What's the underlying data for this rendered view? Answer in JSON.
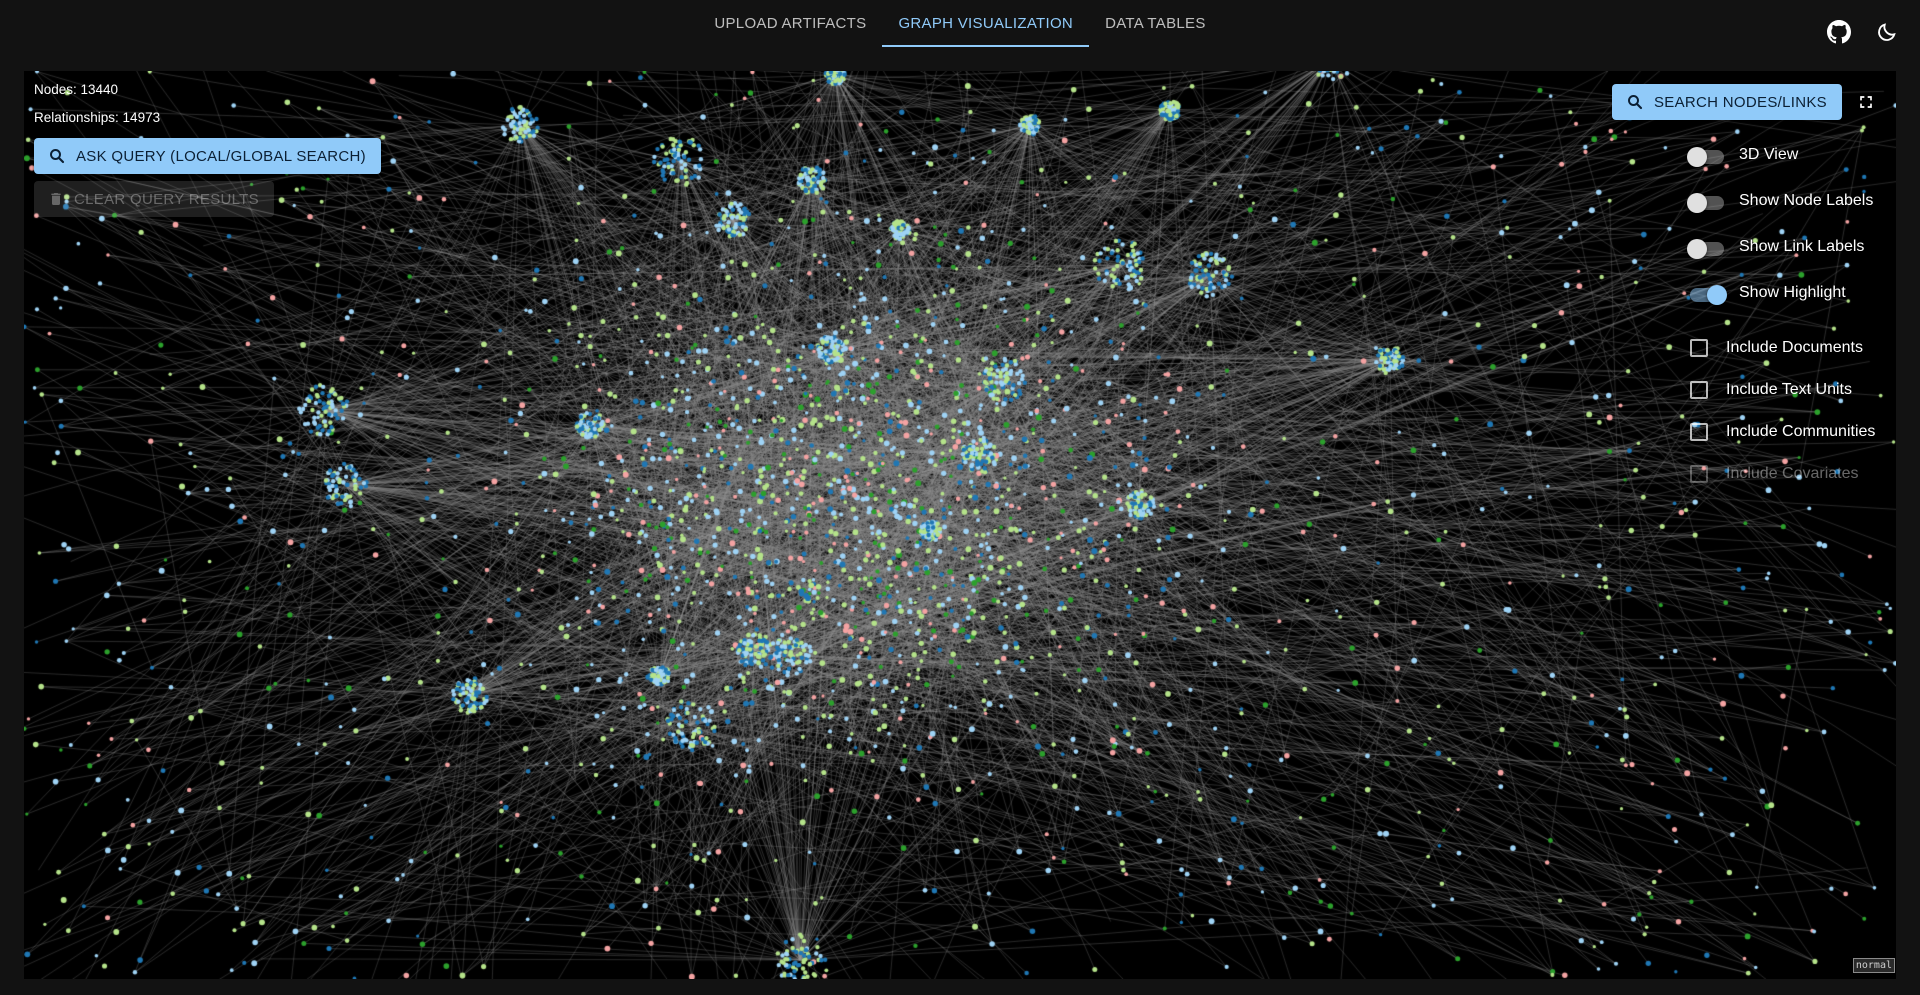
{
  "tabs": [
    {
      "label": "UPLOAD ARTIFACTS",
      "active": false
    },
    {
      "label": "GRAPH VISUALIZATION",
      "active": true
    },
    {
      "label": "DATA TABLES",
      "active": false
    }
  ],
  "header_icons": {
    "github": "github-icon",
    "theme": "moon-icon"
  },
  "stats": {
    "nodes": "Nodes: 13440",
    "relationships": "Relationships: 14973"
  },
  "buttons": {
    "ask_query": "ASK QUERY (LOCAL/GLOBAL SEARCH)",
    "clear_query": "CLEAR QUERY RESULTS",
    "search": "SEARCH NODES/LINKS"
  },
  "toggles": [
    {
      "label": "3D View",
      "checked": false
    },
    {
      "label": "Show Node Labels",
      "checked": false
    },
    {
      "label": "Show Link Labels",
      "checked": false
    },
    {
      "label": "Show Highlight",
      "checked": true
    }
  ],
  "checkboxes": [
    {
      "label": "Include Documents",
      "checked": false,
      "disabled": false
    },
    {
      "label": "Include Text Units",
      "checked": false,
      "disabled": false
    },
    {
      "label": "Include Communities",
      "checked": false,
      "disabled": false
    },
    {
      "label": "Include Covariates",
      "checked": false,
      "disabled": true
    }
  ],
  "mode_badge": "normal",
  "colors": {
    "accent": "#90caf9",
    "background": "#121212",
    "graph_background": "#000000",
    "link": "#8a8a8a",
    "node_light_blue": "#9fd3f5",
    "node_blue": "#1f77b4",
    "node_light_green": "#b5e38a",
    "node_green": "#2ca02c",
    "node_pink": "#f4a3a3"
  }
}
